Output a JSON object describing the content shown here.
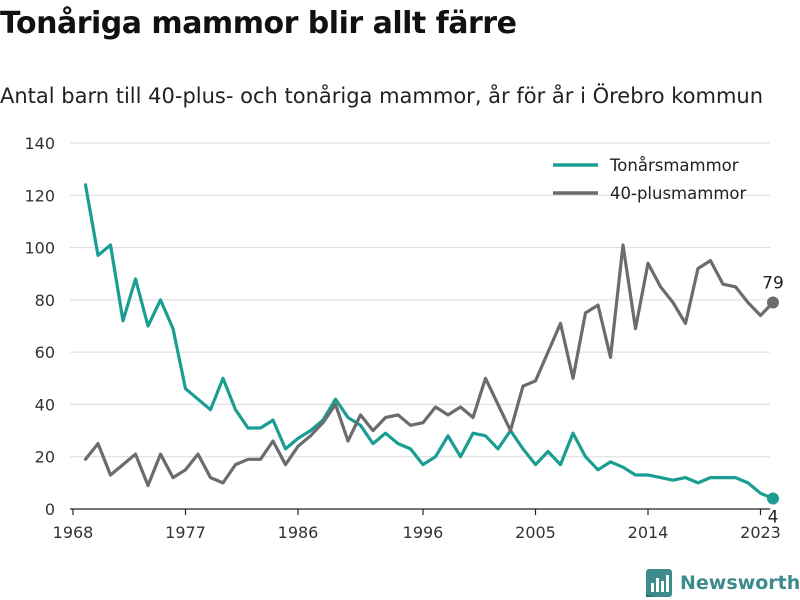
{
  "chart_data": {
    "type": "line",
    "title": "Tonåriga mammor blir allt färre",
    "subtitle": "Antal barn till 40-plus- och tonåriga mammor, år för år i Örebro kommun",
    "xlabel": "",
    "ylabel": "",
    "xlim": [
      1968,
      2024
    ],
    "ylim": [
      0,
      140
    ],
    "x_ticks": [
      1968,
      1977,
      1986,
      1996,
      2005,
      2014,
      2023
    ],
    "y_ticks": [
      0,
      20,
      40,
      60,
      80,
      100,
      120,
      140
    ],
    "grid": "horizontal",
    "legend_position": "top-right",
    "x": [
      1969,
      1970,
      1971,
      1972,
      1973,
      1974,
      1975,
      1976,
      1977,
      1978,
      1979,
      1980,
      1981,
      1982,
      1983,
      1984,
      1985,
      1986,
      1987,
      1988,
      1989,
      1990,
      1991,
      1992,
      1993,
      1994,
      1995,
      1996,
      1997,
      1998,
      1999,
      2000,
      2001,
      2002,
      2003,
      2004,
      2005,
      2006,
      2007,
      2008,
      2009,
      2010,
      2011,
      2012,
      2013,
      2014,
      2015,
      2016,
      2017,
      2018,
      2019,
      2020,
      2021,
      2022,
      2023,
      2024
    ],
    "series": [
      {
        "name": "Tonårsmammor",
        "color": "#1a9e93",
        "values": [
          124,
          97,
          101,
          72,
          88,
          70,
          80,
          69,
          46,
          42,
          38,
          50,
          38,
          31,
          31,
          34,
          23,
          27,
          30,
          34,
          42,
          35,
          32,
          25,
          29,
          25,
          23,
          17,
          20,
          28,
          20,
          29,
          28,
          23,
          30,
          23,
          17,
          22,
          17,
          29,
          20,
          15,
          18,
          16,
          13,
          13,
          12,
          11,
          12,
          10,
          12,
          12,
          12,
          10,
          6,
          4
        ],
        "end_label": "4"
      },
      {
        "name": "40-plusmammor",
        "color": "#6b6b70",
        "values": [
          19,
          25,
          13,
          17,
          21,
          9,
          21,
          12,
          15,
          21,
          12,
          10,
          17,
          19,
          19,
          26,
          17,
          24,
          28,
          33,
          40,
          26,
          36,
          30,
          35,
          36,
          32,
          33,
          39,
          36,
          39,
          35,
          50,
          40,
          30,
          47,
          49,
          60,
          71,
          50,
          75,
          78,
          58,
          101,
          69,
          94,
          85,
          79,
          71,
          92,
          95,
          86,
          85,
          79,
          74,
          79
        ],
        "end_label": "79"
      }
    ]
  },
  "branding": {
    "name": "Newsworthy",
    "logo_icon": "bar-chart-logo-icon",
    "color": "#3d8b8c"
  }
}
